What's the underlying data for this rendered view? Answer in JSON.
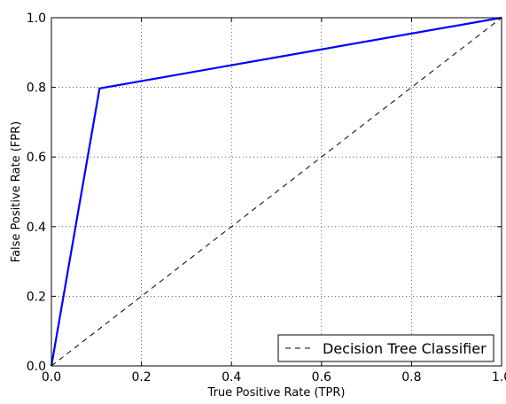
{
  "chart_data": {
    "type": "line",
    "title": "",
    "xlabel": "True Positive Rate (TPR)",
    "ylabel": "False Positive Rate (FPR)",
    "xlim": [
      0.0,
      1.0
    ],
    "ylim": [
      0.0,
      1.0
    ],
    "xticks": [
      "0.0",
      "0.2",
      "0.4",
      "0.6",
      "0.8",
      "1.0"
    ],
    "yticks": [
      "0.0",
      "0.2",
      "0.4",
      "0.6",
      "0.8",
      "1.0"
    ],
    "grid": true,
    "legend": {
      "position": "lower-right",
      "entries": [
        "Decision Tree Classifier"
      ]
    },
    "series": [
      {
        "name": "",
        "color": "#0000ff",
        "style": "solid",
        "x": [
          0.0,
          0.107,
          1.0
        ],
        "y": [
          0.0,
          0.797,
          1.0
        ]
      },
      {
        "name": "Decision Tree Classifier",
        "color": "#000000",
        "style": "dashed",
        "x": [
          0.0,
          1.0
        ],
        "y": [
          0.0,
          1.0
        ]
      }
    ]
  }
}
